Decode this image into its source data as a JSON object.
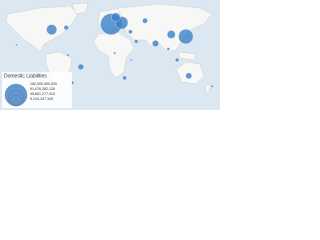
{
  "map": {
    "title": "Domestic Liabilities",
    "color": "#3a7fc7",
    "legend": [
      {
        "value": 182000000000,
        "label": "182,000,000,000"
      },
      {
        "value": 91076382126,
        "label": "91,076,382,126"
      },
      {
        "value": 45661277913,
        "label": "45,661,277,913"
      },
      {
        "value": 9134347349,
        "label": "9,134,347,349"
      }
    ],
    "points": [
      {
        "lon": 2,
        "lat": 50,
        "value": 170000000000
      },
      {
        "lon": 20,
        "lat": 52,
        "value": 60000000000
      },
      {
        "lon": 10,
        "lat": 60,
        "value": 30000000000
      },
      {
        "lon": -100,
        "lat": 42,
        "value": 40000000000
      },
      {
        "lon": -75,
        "lat": 45,
        "value": 8000000000
      },
      {
        "lon": 130,
        "lat": 32,
        "value": 80000000000
      },
      {
        "lon": 105,
        "lat": 35,
        "value": 25000000000
      },
      {
        "lon": 78,
        "lat": 22,
        "value": 15000000000
      },
      {
        "lon": 35,
        "lat": 39,
        "value": 6000000000
      },
      {
        "lon": 45,
        "lat": 25,
        "value": 5000000000
      },
      {
        "lon": -50,
        "lat": -12,
        "value": 12000000000
      },
      {
        "lon": -65,
        "lat": -35,
        "value": 4000000000
      },
      {
        "lon": -72,
        "lat": 5,
        "value": 2000000000
      },
      {
        "lon": 25,
        "lat": -28,
        "value": 6000000000
      },
      {
        "lon": 8,
        "lat": 8,
        "value": 2000000000
      },
      {
        "lon": 36,
        "lat": -2,
        "value": 1500000000
      },
      {
        "lon": 135,
        "lat": -25,
        "value": 14000000000
      },
      {
        "lon": 115,
        "lat": -2,
        "value": 5000000000
      },
      {
        "lon": 100,
        "lat": 14,
        "value": 3000000000
      },
      {
        "lon": 60,
        "lat": 55,
        "value": 10000000000
      },
      {
        "lon": 175,
        "lat": -40,
        "value": 2000000000
      },
      {
        "lon": -160,
        "lat": 20,
        "value": 1000000000
      }
    ]
  }
}
